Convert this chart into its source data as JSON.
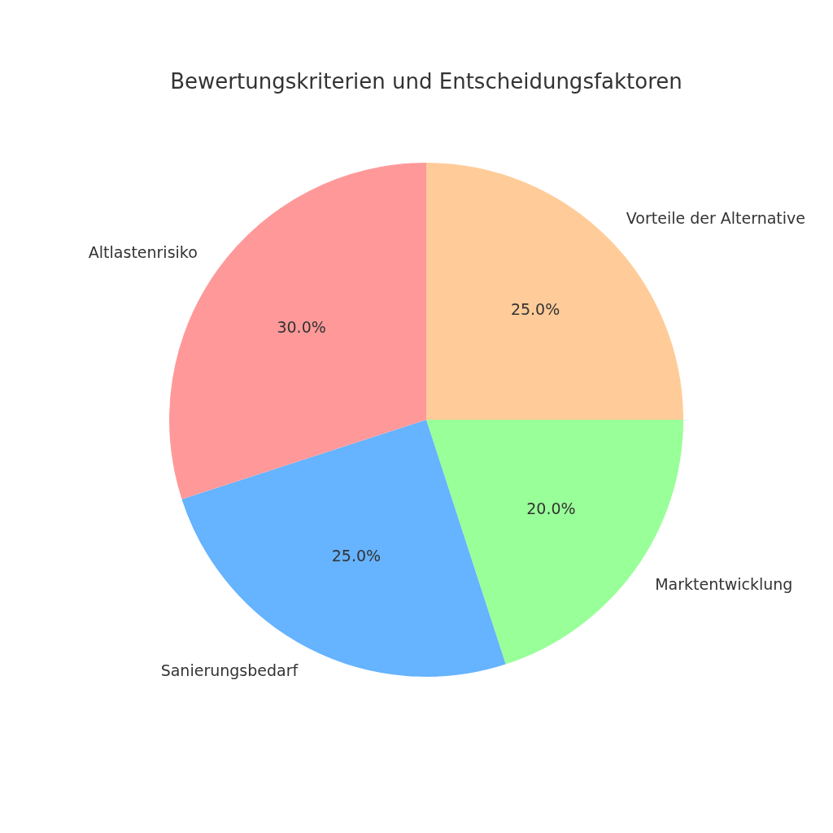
{
  "chart_data": {
    "type": "pie",
    "title": "Bewertungskriterien und Entscheidungsfaktoren",
    "categories": [
      "Vorteile der Alternative",
      "Marktentwicklung",
      "Sanierungsbedarf",
      "Altlastenrisiko"
    ],
    "values": [
      25,
      20,
      25,
      30
    ],
    "colors": [
      "#ffcc99",
      "#99ff99",
      "#66b3ff",
      "#ff9999"
    ],
    "value_labels": [
      "25.0%",
      "20.0%",
      "25.0%",
      "30.0%"
    ],
    "legend": false
  }
}
